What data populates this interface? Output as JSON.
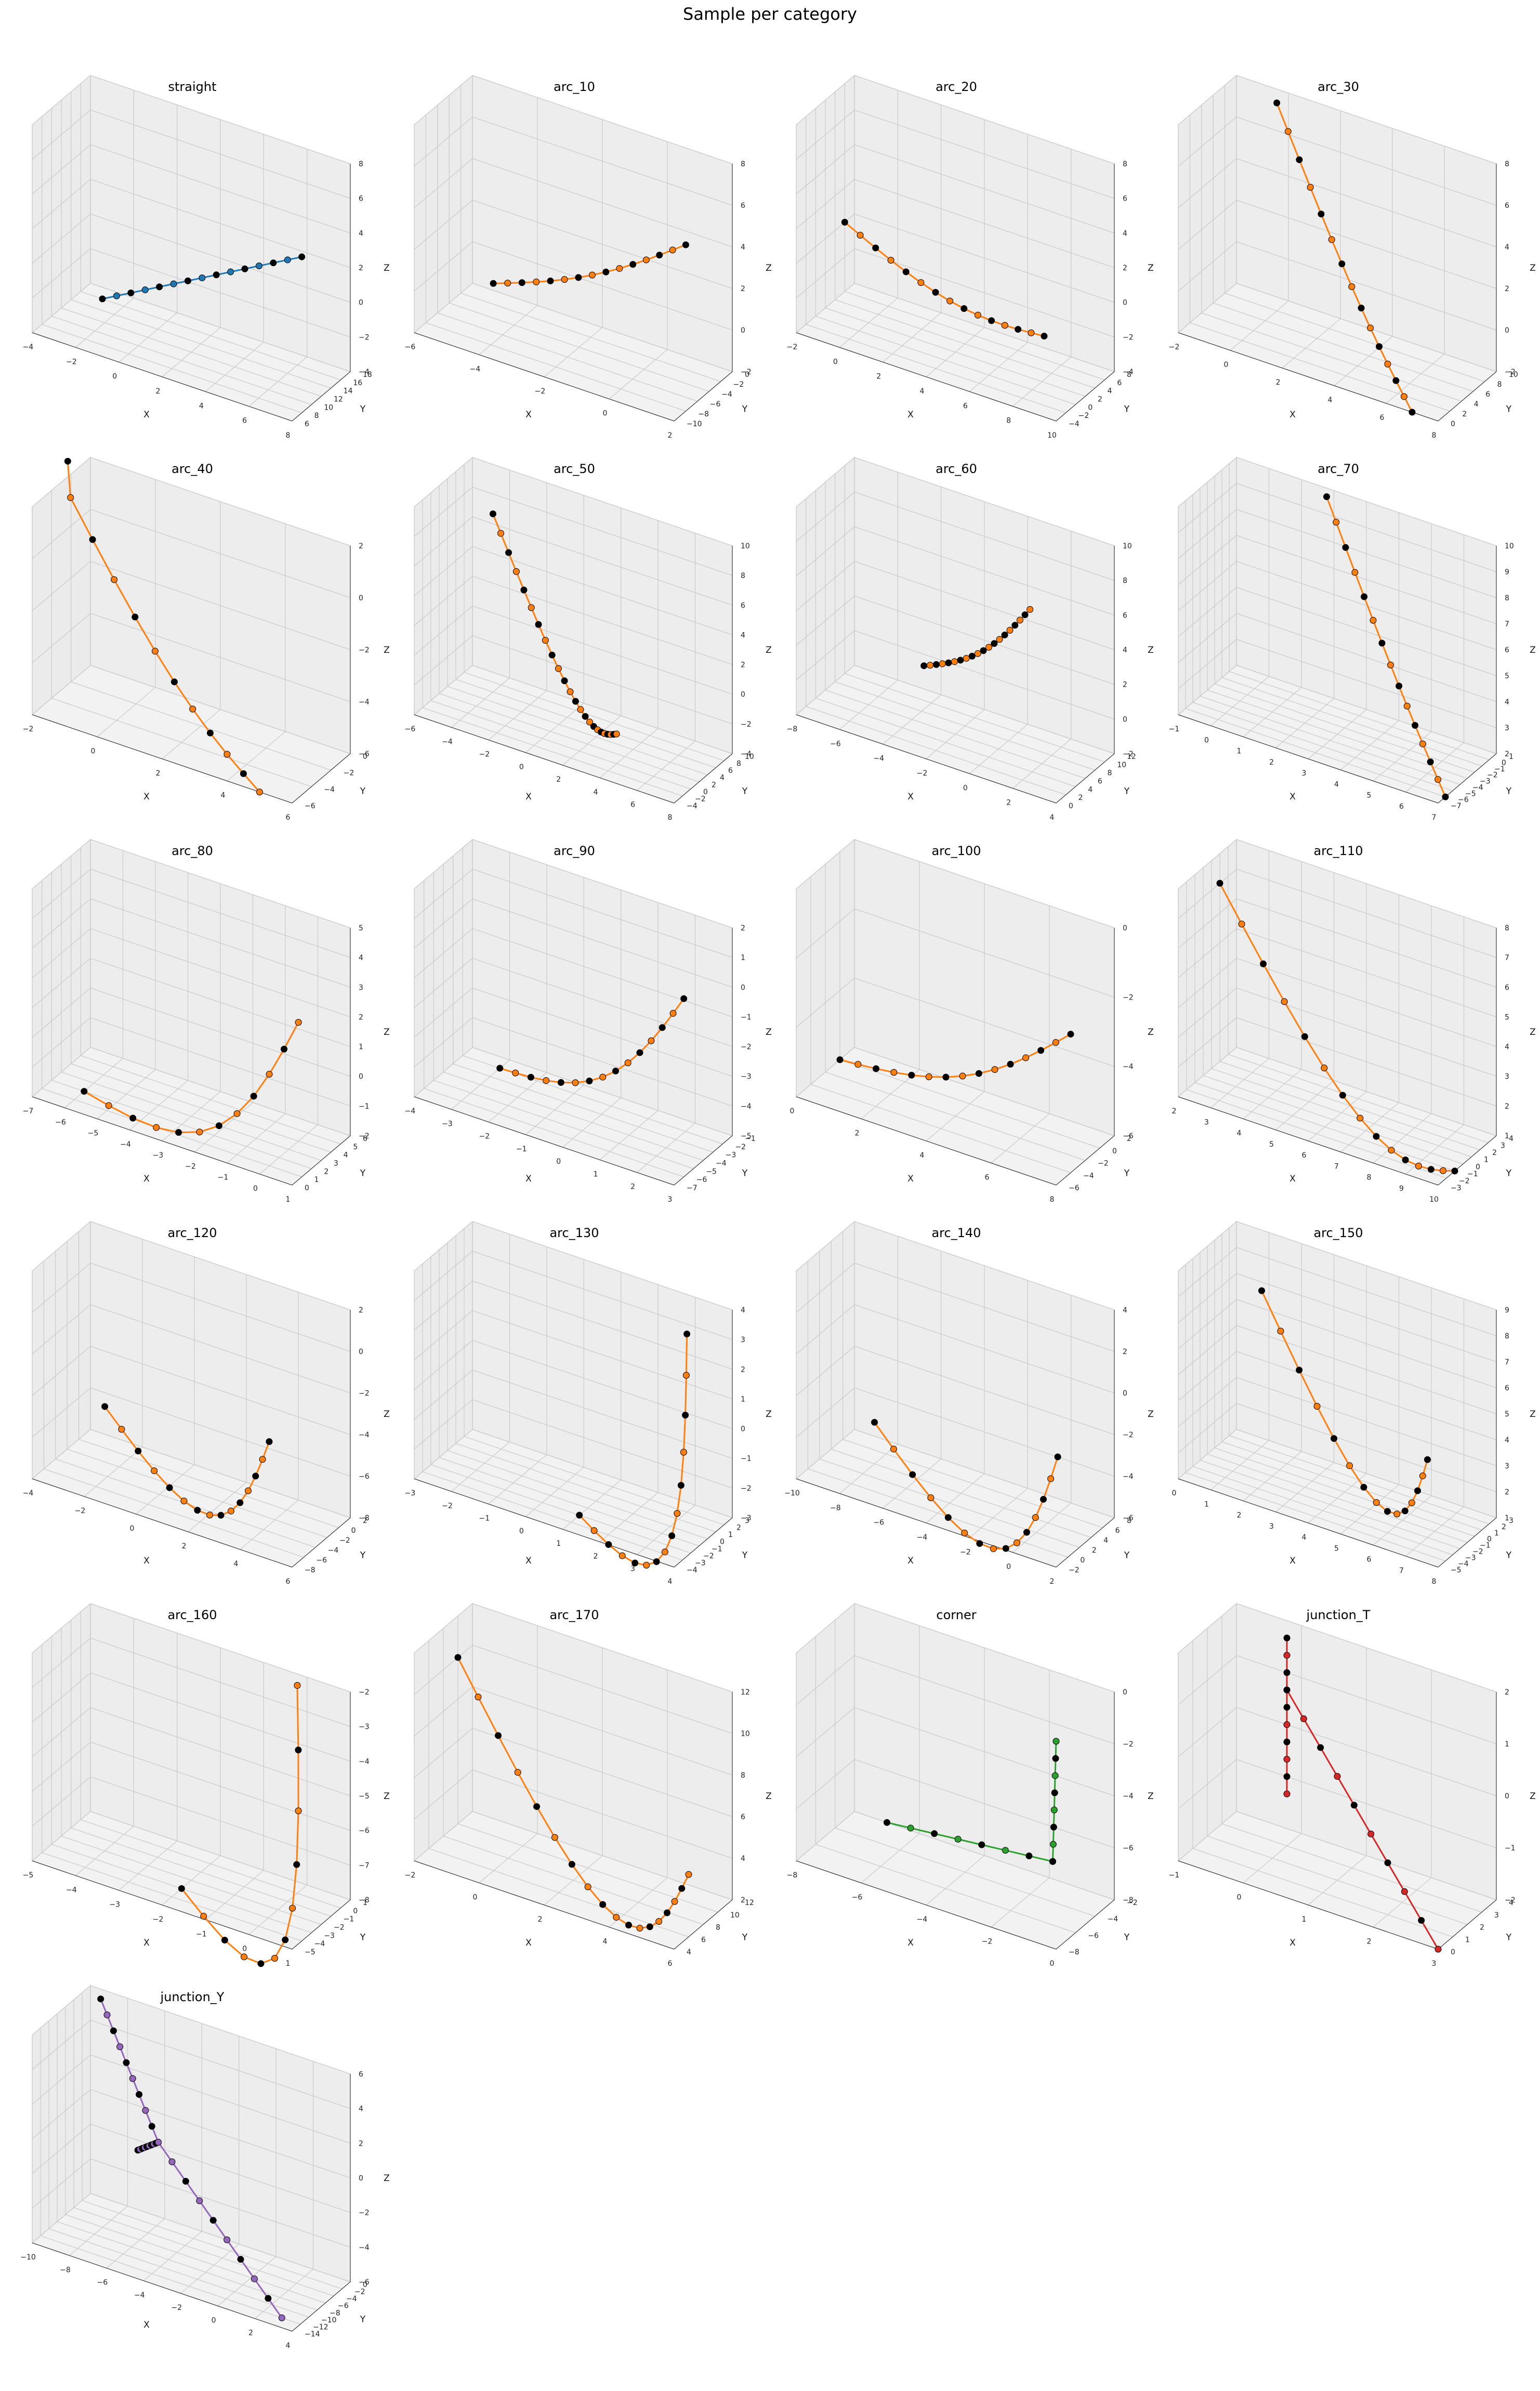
{
  "figure_title": "Sample per category",
  "chart_data": [
    {
      "type": "scatter",
      "title": "straight",
      "xlabel": "X",
      "ylabel": "Y",
      "zlabel": "Z",
      "xticks": [
        "−4",
        "−2",
        "0",
        "2",
        "4",
        "6",
        "8"
      ],
      "yticks": [
        "6",
        "8",
        "10",
        "12",
        "14",
        "16",
        "18"
      ],
      "zticks": [
        "−4",
        "−2",
        "0",
        "2",
        "4",
        "6",
        "8"
      ],
      "line_color": "#1f77b4",
      "start": [
        -3,
        16,
        -4
      ],
      "end": [
        8,
        8,
        5
      ],
      "bend": 0,
      "n": 15
    },
    {
      "type": "scatter",
      "title": "arc_10",
      "xlabel": "X",
      "ylabel": "Y",
      "zlabel": "Z",
      "xticks": [
        "−6",
        "−4",
        "−2",
        "0",
        "2"
      ],
      "yticks": [
        "−10",
        "−8",
        "−6",
        "−4",
        "−2",
        "0"
      ],
      "zticks": [
        "−2",
        "0",
        "2",
        "4",
        "6",
        "8"
      ],
      "line_color": "#ff7f0e",
      "start": [
        -5,
        -2,
        -1
      ],
      "end": [
        2,
        -8,
        6
      ],
      "bend": 0.03,
      "n": 15
    },
    {
      "type": "scatter",
      "title": "arc_20",
      "xlabel": "X",
      "ylabel": "Y",
      "zlabel": "Z",
      "xticks": [
        "−2",
        "0",
        "2",
        "4",
        "6",
        "8",
        "10"
      ],
      "yticks": [
        "−4",
        "−2",
        "0",
        "2",
        "4",
        "6",
        "8"
      ],
      "zticks": [
        "−4",
        "−2",
        "0",
        "2",
        "4",
        "6",
        "8"
      ],
      "line_color": "#ff7f0e",
      "start": [
        -2,
        6,
        0
      ],
      "end": [
        9,
        -2,
        0
      ],
      "bend": 0.06,
      "n": 15
    },
    {
      "type": "scatter",
      "title": "arc_30",
      "xlabel": "X",
      "ylabel": "Y",
      "zlabel": "Z",
      "xticks": [
        "−2",
        "0",
        "2",
        "4",
        "6",
        "8"
      ],
      "yticks": [
        "0",
        "2",
        "4",
        "6",
        "8",
        "10"
      ],
      "zticks": [
        "−2",
        "0",
        "2",
        "4",
        "6",
        "8"
      ],
      "line_color": "#ff7f0e",
      "start": [
        0,
        8,
        8
      ],
      "end": [
        7,
        0,
        -2
      ],
      "bend": 0.08,
      "n": 15
    },
    {
      "type": "scatter",
      "title": "arc_40",
      "xlabel": "X",
      "ylabel": "Y",
      "zlabel": "Z",
      "xticks": [
        "−2",
        "0",
        "2",
        "4",
        "6"
      ],
      "yticks": [
        "−6",
        "−4",
        "−2",
        "0"
      ],
      "zticks": [
        "−6",
        "−4",
        "−2",
        "0",
        "2"
      ],
      "line_color": "#ff7f0e",
      "start": [
        -3,
        -1,
        2
      ],
      "end": [
        5,
        -6,
        -6
      ],
      "bend": 0.12,
      "n": 12
    },
    {
      "type": "scatter",
      "title": "arc_50",
      "xlabel": "X",
      "ylabel": "Y",
      "zlabel": "Z",
      "xticks": [
        "−6",
        "−4",
        "−2",
        "0",
        "2",
        "4",
        "6",
        "8"
      ],
      "yticks": [
        "−4",
        "−2",
        "0",
        "2",
        "4",
        "6",
        "8",
        "10"
      ],
      "zticks": [
        "−4",
        "−2",
        "0",
        "2",
        "4",
        "6",
        "8",
        "10"
      ],
      "line_color": "#ff7f0e",
      "start": [
        -4,
        6,
        8
      ],
      "end": [
        4,
        0,
        -2
      ],
      "bend": 0.2,
      "n": 24
    },
    {
      "type": "scatter",
      "title": "arc_60",
      "xlabel": "X",
      "ylabel": "Y",
      "zlabel": "Z",
      "xticks": [
        "−8",
        "−6",
        "−4",
        "−2",
        "0",
        "2",
        "4"
      ],
      "yticks": [
        "0",
        "2",
        "4",
        "6",
        "8",
        "10",
        "12"
      ],
      "zticks": [
        "−2",
        "0",
        "2",
        "4",
        "6",
        "8",
        "10"
      ],
      "line_color": "#ff7f0e",
      "start": [
        -3,
        4,
        2
      ],
      "end": [
        1,
        8,
        6
      ],
      "bend": 0.04,
      "n": 20
    },
    {
      "type": "scatter",
      "title": "arc_70",
      "xlabel": "X",
      "ylabel": "Y",
      "zlabel": "Z",
      "xticks": [
        "−1",
        "0",
        "1",
        "2",
        "3",
        "4",
        "5",
        "6",
        "7"
      ],
      "yticks": [
        "−7",
        "−6",
        "−5",
        "−4",
        "−3",
        "−2",
        "−1",
        "0",
        "1"
      ],
      "zticks": [
        "2",
        "3",
        "4",
        "5",
        "6",
        "7",
        "8",
        "9",
        "10"
      ],
      "line_color": "#ff7f0e",
      "start": [
        2,
        0,
        10
      ],
      "end": [
        7,
        -6,
        2
      ],
      "bend": 0.05,
      "n": 15
    },
    {
      "type": "scatter",
      "title": "arc_80",
      "xlabel": "X",
      "ylabel": "Y",
      "zlabel": "Z",
      "xticks": [
        "−7",
        "−6",
        "−5",
        "−4",
        "−3",
        "−2",
        "−1",
        "0",
        "1"
      ],
      "yticks": [
        "0",
        "1",
        "2",
        "3",
        "4",
        "5",
        "6"
      ],
      "zticks": [
        "−2",
        "−1",
        "0",
        "1",
        "2",
        "3",
        "4",
        "5"
      ],
      "line_color": "#ff7f0e",
      "start": [
        -6,
        2,
        -2
      ],
      "end": [
        0,
        4,
        2
      ],
      "bend": 0.2,
      "n": 12
    },
    {
      "type": "scatter",
      "title": "arc_90",
      "xlabel": "X",
      "ylabel": "Y",
      "zlabel": "Z",
      "xticks": [
        "−4",
        "−3",
        "−2",
        "−1",
        "0",
        "1",
        "2",
        "3"
      ],
      "yticks": [
        "−7",
        "−6",
        "−5",
        "−4",
        "−3",
        "−2",
        "−1"
      ],
      "zticks": [
        "−5",
        "−4",
        "−3",
        "−2",
        "−1",
        "0",
        "1",
        "2"
      ],
      "line_color": "#ff7f0e",
      "start": [
        -3,
        -2,
        -5
      ],
      "end": [
        3,
        -6,
        1
      ],
      "bend": 0.12,
      "n": 15
    },
    {
      "type": "scatter",
      "title": "arc_100",
      "xlabel": "X",
      "ylabel": "Y",
      "zlabel": "Z",
      "xticks": [
        "0",
        "2",
        "4",
        "6",
        "8"
      ],
      "yticks": [
        "−6",
        "−4",
        "−2",
        "0",
        "2"
      ],
      "zticks": [
        "−6",
        "−4",
        "−2",
        "0"
      ],
      "line_color": "#ff7f0e",
      "start": [
        0,
        0,
        -6
      ],
      "end": [
        8,
        -4,
        -2
      ],
      "bend": 0.08,
      "n": 15
    },
    {
      "type": "scatter",
      "title": "arc_110",
      "xlabel": "X",
      "ylabel": "Y",
      "zlabel": "Z",
      "xticks": [
        "2",
        "3",
        "4",
        "5",
        "6",
        "7",
        "8",
        "9",
        "10"
      ],
      "yticks": [
        "−3",
        "−2",
        "−1",
        "0",
        "1",
        "2",
        "3",
        "4"
      ],
      "zticks": [
        "1",
        "2",
        "3",
        "4",
        "5",
        "6",
        "7",
        "8"
      ],
      "line_color": "#ff7f0e",
      "start": [
        2,
        2,
        7
      ],
      "end": [
        10,
        -1,
        1
      ],
      "bend": 0.25,
      "n": 15
    },
    {
      "type": "scatter",
      "title": "arc_120",
      "xlabel": "X",
      "ylabel": "Y",
      "zlabel": "Z",
      "xticks": [
        "−4",
        "−2",
        "0",
        "2",
        "4",
        "6"
      ],
      "yticks": [
        "−8",
        "−6",
        "−4",
        "−2",
        "0",
        "2"
      ],
      "zticks": [
        "−8",
        "−6",
        "−4",
        "−2",
        "0",
        "2"
      ],
      "line_color": "#ff7f0e",
      "start": [
        -3,
        0,
        -6
      ],
      "end": [
        4,
        -3,
        -4
      ],
      "bend": 0.25,
      "n": 15
    },
    {
      "type": "scatter",
      "title": "arc_130",
      "xlabel": "X",
      "ylabel": "Y",
      "zlabel": "Z",
      "xticks": [
        "−3",
        "−2",
        "−1",
        "0",
        "1",
        "2",
        "3",
        "4"
      ],
      "yticks": [
        "−4",
        "−3",
        "−2",
        "−1",
        "0",
        "1",
        "2",
        "3"
      ],
      "zticks": [
        "−3",
        "−2",
        "−1",
        "0",
        "1",
        "2",
        "3",
        "4"
      ],
      "line_color": "#ff7f0e",
      "start": [
        1,
        -2,
        -3
      ],
      "end": [
        3,
        2,
        3
      ],
      "bend": 0.35,
      "n": 15
    },
    {
      "type": "scatter",
      "title": "arc_140",
      "xlabel": "X",
      "ylabel": "Y",
      "zlabel": "Z",
      "xticks": [
        "−10",
        "−8",
        "−6",
        "−4",
        "−2",
        "0",
        "2"
      ],
      "yticks": [
        "−2",
        "0",
        "2",
        "4",
        "6",
        "8"
      ],
      "zticks": [
        "−6",
        "−4",
        "−2",
        "0",
        "2",
        "4"
      ],
      "line_color": "#ff7f0e",
      "start": [
        -8,
        4,
        -4
      ],
      "end": [
        1,
        2,
        -2
      ],
      "bend": 0.3,
      "n": 15
    },
    {
      "type": "scatter",
      "title": "arc_150",
      "xlabel": "X",
      "ylabel": "Y",
      "zlabel": "Z",
      "xticks": [
        "0",
        "1",
        "2",
        "3",
        "4",
        "5",
        "6",
        "7",
        "8"
      ],
      "yticks": [
        "−5",
        "−4",
        "−3",
        "−2",
        "−1",
        "0",
        "1",
        "2",
        "3"
      ],
      "zticks": [
        "1",
        "2",
        "3",
        "4",
        "5",
        "6",
        "7",
        "8",
        "9"
      ],
      "line_color": "#ff7f0e",
      "start": [
        1,
        2,
        7
      ],
      "end": [
        7,
        -2,
        4
      ],
      "bend": 0.35,
      "n": 15
    },
    {
      "type": "scatter",
      "title": "arc_160",
      "xlabel": "X",
      "ylabel": "Y",
      "zlabel": "Z",
      "xticks": [
        "−5",
        "−4",
        "−3",
        "−2",
        "−1",
        "0",
        "1"
      ],
      "yticks": [
        "−5",
        "−4",
        "−3",
        "−2",
        "−1",
        "0",
        "1"
      ],
      "zticks": [
        "−8",
        "−7",
        "−6",
        "−5",
        "−4",
        "−3",
        "−2"
      ],
      "line_color": "#ff7f0e",
      "start": [
        -2,
        -3,
        -8
      ],
      "end": [
        0,
        0,
        -2
      ],
      "bend": 0.45,
      "n": 12
    },
    {
      "type": "scatter",
      "title": "arc_170",
      "xlabel": "X",
      "ylabel": "Y",
      "zlabel": "Z",
      "xticks": [
        "−2",
        "0",
        "2",
        "4",
        "6"
      ],
      "yticks": [
        "4",
        "6",
        "8",
        "10",
        "12"
      ],
      "zticks": [
        "2",
        "4",
        "6",
        "8",
        "10",
        "12"
      ],
      "line_color": "#ff7f0e",
      "start": [
        -2,
        10,
        10
      ],
      "end": [
        6,
        6,
        5
      ],
      "bend": 0.4,
      "n": 18
    },
    {
      "type": "scatter",
      "title": "corner",
      "xlabel": "X",
      "ylabel": "Y",
      "zlabel": "Z",
      "xticks": [
        "−8",
        "−6",
        "−4",
        "−2",
        "0"
      ],
      "yticks": [
        "−8",
        "−6",
        "−4",
        "−2"
      ],
      "zticks": [
        "−8",
        "−6",
        "−4",
        "−2",
        "0"
      ],
      "line_color": "#2ca02c",
      "polyline": [
        [
          -7,
          -2,
          -8
        ],
        [
          -1,
          -5,
          -6
        ],
        [
          0,
          -8,
          0
        ]
      ],
      "n": 15
    },
    {
      "type": "scatter",
      "title": "junction_T",
      "xlabel": "X",
      "ylabel": "Y",
      "zlabel": "Z",
      "xticks": [
        "−1",
        "0",
        "1",
        "2",
        "3"
      ],
      "yticks": [
        "0",
        "1",
        "2",
        "3",
        "4"
      ],
      "zticks": [
        "−2",
        "−1",
        "0",
        "1",
        "2"
      ],
      "line_color": "#d62728",
      "branches": [
        [
          [
            0,
            3,
            2
          ],
          [
            0,
            3,
            -1
          ]
        ],
        [
          [
            0,
            3,
            1
          ],
          [
            3,
            0,
            -2
          ]
        ]
      ],
      "n": 10
    },
    {
      "type": "scatter",
      "title": "junction_Y",
      "xlabel": "X",
      "ylabel": "Y",
      "zlabel": "Z",
      "xticks": [
        "−10",
        "−8",
        "−6",
        "−4",
        "−2",
        "0",
        "2",
        "4"
      ],
      "yticks": [
        "−14",
        "−12",
        "−10",
        "−8",
        "−6",
        "−4",
        "−2",
        "0"
      ],
      "zticks": [
        "−6",
        "−4",
        "−2",
        "0",
        "2",
        "4",
        "6"
      ],
      "line_color": "#9467bd",
      "branches": [
        [
          [
            -9,
            -2,
            6
          ],
          [
            -5,
            -6,
            0
          ]
        ],
        [
          [
            -5,
            -6,
            0
          ],
          [
            3,
            -12,
            -6
          ]
        ],
        [
          [
            -7,
            -2,
            -2
          ],
          [
            -5,
            -6,
            0
          ]
        ]
      ],
      "n": 10
    }
  ]
}
